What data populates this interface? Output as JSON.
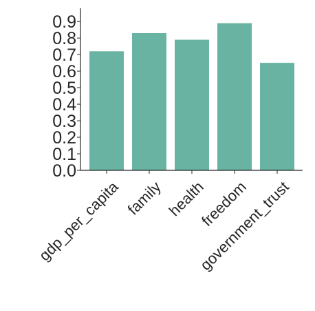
{
  "chart_data": {
    "type": "bar",
    "categories": [
      "gdp_per_capita",
      "family",
      "health",
      "freedom",
      "government_trust"
    ],
    "values": [
      0.72,
      0.83,
      0.79,
      0.89,
      0.65
    ],
    "yticks": [
      "0.0",
      "0.1",
      "0.2",
      "0.3",
      "0.4",
      "0.5",
      "0.6",
      "0.7",
      "0.8",
      "0.9"
    ],
    "ylim": [
      0,
      0.98
    ],
    "grid": false,
    "bar_color": "#69b3a2"
  }
}
